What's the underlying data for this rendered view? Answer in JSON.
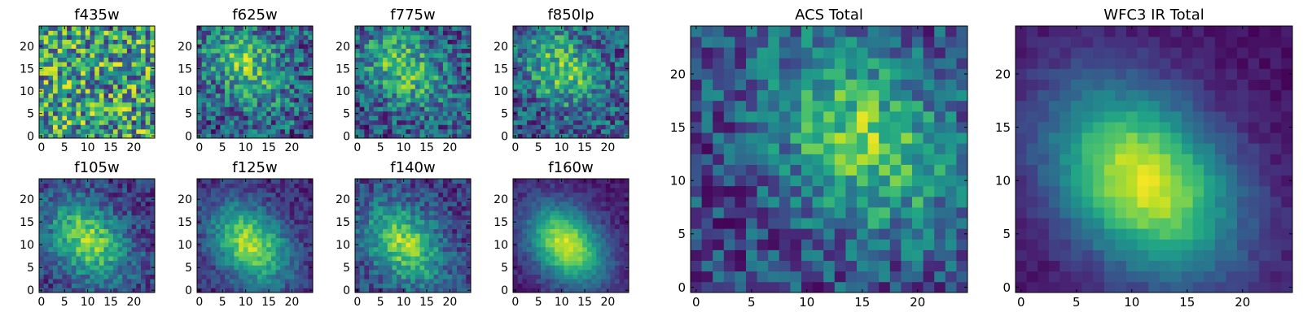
{
  "chart_data": [
    {
      "type": "heatmap",
      "title": "f435w",
      "xticks": [
        0,
        5,
        10,
        15,
        20
      ],
      "yticks": [
        0,
        5,
        10,
        15,
        20
      ],
      "xlim": [
        0,
        24
      ],
      "ylim": [
        0,
        24
      ],
      "grid": false,
      "colormap": "viridis",
      "peak": null,
      "noise": 0.85
    },
    {
      "type": "heatmap",
      "title": "f625w",
      "xticks": [
        0,
        5,
        10,
        15,
        20
      ],
      "yticks": [
        0,
        5,
        10,
        15,
        20
      ],
      "xlim": [
        0,
        24
      ],
      "ylim": [
        0,
        24
      ],
      "grid": false,
      "colormap": "viridis",
      "peak": [
        10,
        16
      ],
      "noise": 0.6
    },
    {
      "type": "heatmap",
      "title": "f775w",
      "xticks": [
        0,
        5,
        10,
        15,
        20
      ],
      "yticks": [
        0,
        5,
        10,
        15,
        20
      ],
      "xlim": [
        0,
        24
      ],
      "ylim": [
        0,
        24
      ],
      "grid": false,
      "colormap": "viridis",
      "peak": [
        10,
        15
      ],
      "noise": 0.55
    },
    {
      "type": "heatmap",
      "title": "f850lp",
      "xticks": [
        0,
        5,
        10,
        15,
        20
      ],
      "yticks": [
        0,
        5,
        10,
        15,
        20
      ],
      "xlim": [
        0,
        24
      ],
      "ylim": [
        0,
        24
      ],
      "grid": false,
      "colormap": "viridis",
      "peak": [
        10,
        15
      ],
      "noise": 0.55
    },
    {
      "type": "heatmap",
      "title": "f105w",
      "xticks": [
        0,
        5,
        10,
        15,
        20
      ],
      "yticks": [
        0,
        5,
        10,
        15,
        20
      ],
      "xlim": [
        0,
        24
      ],
      "ylim": [
        0,
        24
      ],
      "grid": false,
      "colormap": "viridis",
      "peak": [
        10,
        11
      ],
      "noise": 0.35
    },
    {
      "type": "heatmap",
      "title": "f125w",
      "xticks": [
        0,
        5,
        10,
        15,
        20
      ],
      "yticks": [
        0,
        5,
        10,
        15,
        20
      ],
      "xlim": [
        0,
        24
      ],
      "ylim": [
        0,
        24
      ],
      "grid": false,
      "colormap": "viridis",
      "peak": [
        11,
        10
      ],
      "noise": 0.25
    },
    {
      "type": "heatmap",
      "title": "f140w",
      "xticks": [
        0,
        5,
        10,
        15,
        20
      ],
      "yticks": [
        0,
        5,
        10,
        15,
        20
      ],
      "xlim": [
        0,
        24
      ],
      "ylim": [
        0,
        24
      ],
      "grid": false,
      "colormap": "viridis",
      "peak": [
        10,
        10
      ],
      "noise": 0.35
    },
    {
      "type": "heatmap",
      "title": "f160w",
      "xticks": [
        0,
        5,
        10,
        15,
        20
      ],
      "yticks": [
        0,
        5,
        10,
        15,
        20
      ],
      "xlim": [
        0,
        24
      ],
      "ylim": [
        0,
        24
      ],
      "grid": false,
      "colormap": "viridis",
      "peak": [
        11,
        10
      ],
      "noise": 0.15
    },
    {
      "type": "heatmap",
      "title": "ACS Total",
      "xticks": [
        0,
        5,
        10,
        15,
        20
      ],
      "yticks": [
        0,
        5,
        10,
        15,
        20
      ],
      "xlim": [
        0,
        24
      ],
      "ylim": [
        0,
        24
      ],
      "grid": false,
      "colormap": "viridis",
      "peak": [
        15,
        14
      ],
      "noise": 0.45
    },
    {
      "type": "heatmap",
      "title": "WFC3 IR Total",
      "xticks": [
        0,
        5,
        10,
        15,
        20
      ],
      "yticks": [
        0,
        5,
        10,
        15,
        20
      ],
      "xlim": [
        0,
        24
      ],
      "ylim": [
        0,
        24
      ],
      "grid": false,
      "colormap": "viridis",
      "peak": [
        11,
        10
      ],
      "noise": 0.1
    }
  ]
}
